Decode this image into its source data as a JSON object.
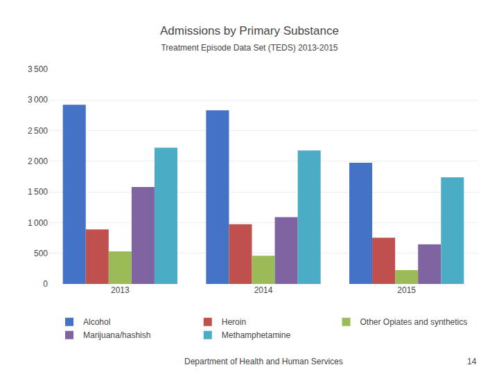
{
  "chart_data": {
    "type": "bar",
    "title": "Admissions by Primary Substance",
    "subtitle": "Treatment Episode Data Set (TEDS) 2013-2015",
    "categories": [
      "2013",
      "2014",
      "2015"
    ],
    "series": [
      {
        "name": "Alcohol",
        "color": "#4472C4",
        "values": [
          2920,
          2830,
          1975
        ]
      },
      {
        "name": "Heroin",
        "color": "#C0504D",
        "values": [
          890,
          975,
          755
        ]
      },
      {
        "name": "Other Opiates and synthetics",
        "color": "#9BBB59",
        "values": [
          530,
          460,
          225
        ]
      },
      {
        "name": "Marijuana/hashish",
        "color": "#8064A2",
        "values": [
          1580,
          1090,
          645
        ]
      },
      {
        "name": "Methamphetamine",
        "color": "#4BACC6",
        "values": [
          2220,
          2175,
          1740
        ]
      }
    ],
    "ylim": [
      0,
      3500
    ],
    "yticks": [
      0,
      500,
      {
        "value": 1000,
        "label": "1 000"
      },
      {
        "value": 1500,
        "label": "1 500"
      },
      {
        "value": 2000,
        "label": "2 000"
      },
      {
        "value": 2500,
        "label": "2 500"
      },
      {
        "value": 3000,
        "label": "3 000"
      },
      {
        "value": 3500,
        "label": "3 500"
      }
    ],
    "grid": true,
    "legend": "bottom",
    "annotations": [
      "Department of Health and Human Services",
      "14"
    ]
  }
}
